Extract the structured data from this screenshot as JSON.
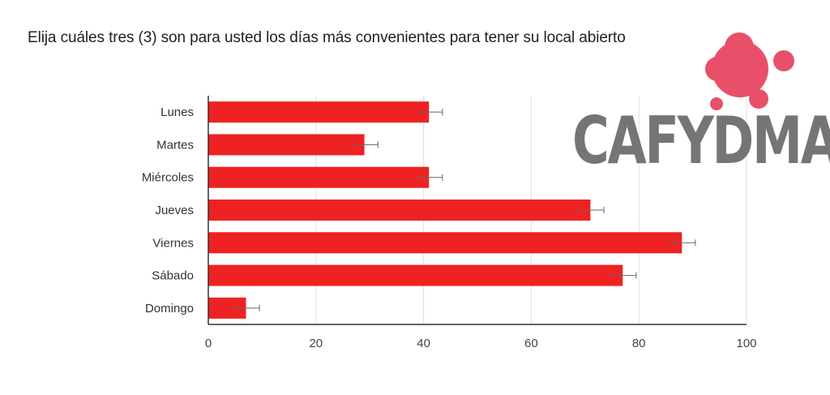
{
  "title": "Elija cuáles tres (3) son para usted los días más convenientes para tener su local abierto",
  "logo": {
    "text": "CAFYDMA",
    "color": "#e8506a",
    "text_color": "#6e6e6e"
  },
  "colors": {
    "bar": "#ee2222",
    "grid": "#e0e0e0",
    "axis": "#333333",
    "error": "#666666"
  },
  "chart_data": {
    "type": "bar",
    "orientation": "horizontal",
    "categories": [
      "Lunes",
      "Martes",
      "Miércoles",
      "Jueves",
      "Viernes",
      "Sábado",
      "Domingo"
    ],
    "values": [
      41,
      29,
      41,
      71,
      88,
      77,
      7
    ],
    "error": [
      2.5,
      2.5,
      2.5,
      2.5,
      2.5,
      2.5,
      2.5
    ],
    "xlim": [
      0,
      100
    ],
    "xticks": [
      0,
      20,
      40,
      60,
      80,
      100
    ],
    "grid": true
  }
}
